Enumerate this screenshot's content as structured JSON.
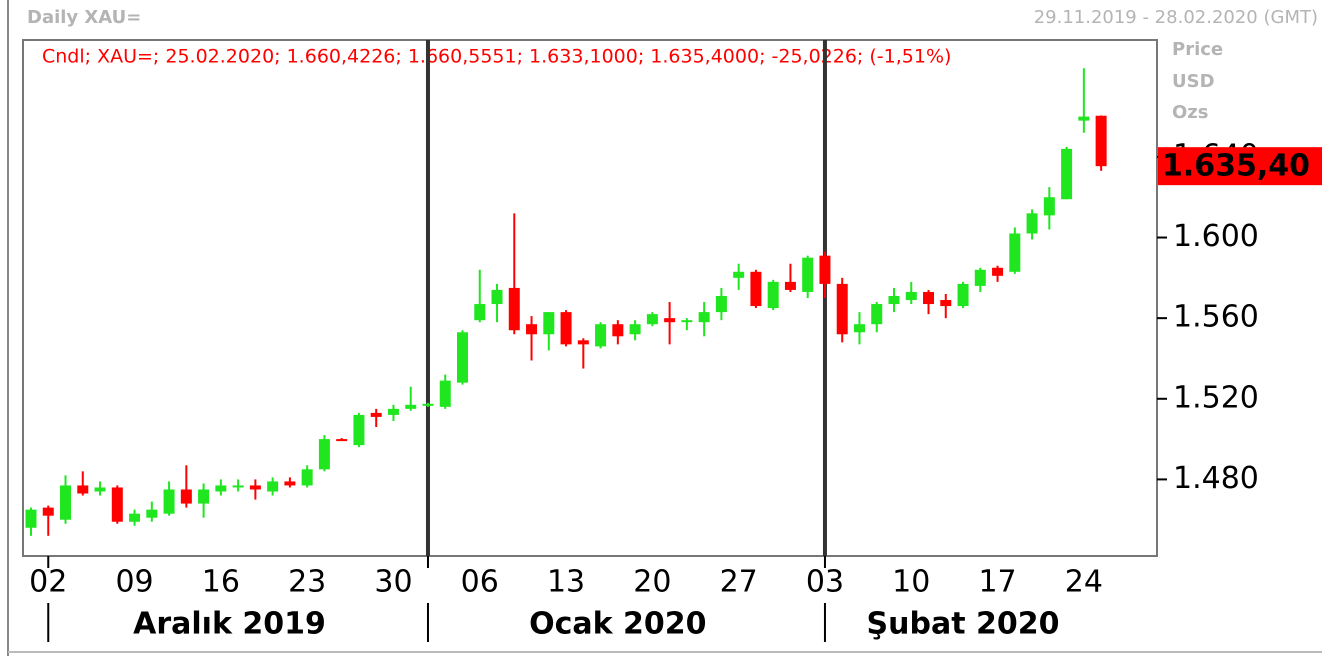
{
  "chart_data": {
    "type": "candlestick",
    "title": "Daily XAU=",
    "subtitle": "29.11.2019 - 28.02.2020 (GMT)",
    "info": "Cndl; XAU=; 25.02.2020; 1.660,4226; 1.660,5551; 1.633,1000; 1.635,4000; -25,0226; (-1,51%)",
    "axis_labels": [
      "Price",
      "USD",
      "Ozs"
    ],
    "last_label": "1.635,40",
    "up_color": "#1fe61f",
    "down_color": "#ff0000",
    "categories": [
      "29.11.2019",
      "02.12.2019",
      "03.12.2019",
      "04.12.2019",
      "05.12.2019",
      "06.12.2019",
      "09.12.2019",
      "10.12.2019",
      "11.12.2019",
      "12.12.2019",
      "13.12.2019",
      "16.12.2019",
      "17.12.2019",
      "18.12.2019",
      "19.12.2019",
      "20.12.2019",
      "23.12.2019",
      "24.12.2019",
      "25.12.2019",
      "26.12.2019",
      "27.12.2019",
      "30.12.2019",
      "31.12.2019",
      "01.01.2020",
      "02.01.2020",
      "03.01.2020",
      "06.01.2020",
      "07.01.2020",
      "08.01.2020",
      "09.01.2020",
      "10.01.2020",
      "13.01.2020",
      "14.01.2020",
      "15.01.2020",
      "16.01.2020",
      "17.01.2020",
      "20.01.2020",
      "21.01.2020",
      "22.01.2020",
      "23.01.2020",
      "24.01.2020",
      "27.01.2020",
      "28.01.2020",
      "29.01.2020",
      "30.01.2020",
      "31.01.2020",
      "03.02.2020",
      "04.02.2020",
      "05.02.2020",
      "06.02.2020",
      "07.02.2020",
      "10.02.2020",
      "11.02.2020",
      "12.02.2020",
      "13.02.2020",
      "14.02.2020",
      "17.02.2020",
      "18.02.2020",
      "19.02.2020",
      "20.02.2020",
      "21.02.2020",
      "24.02.2020",
      "25.02.2020"
    ],
    "open": [
      1456,
      1466,
      1460,
      1477,
      1474,
      1476,
      1459,
      1461,
      1463,
      1475,
      1468,
      1474,
      1476,
      1477,
      1474,
      1479,
      1477,
      1485,
      1500,
      1497,
      1513,
      1512,
      1515,
      1517,
      1516,
      1528,
      1559,
      1567,
      1575,
      1557,
      1552,
      1563,
      1549,
      1546,
      1557,
      1552,
      1557,
      1560,
      1558,
      1558,
      1563,
      1580,
      1583,
      1565,
      1578,
      1573,
      1591,
      1577,
      1553,
      1557,
      1567,
      1569,
      1573,
      1569,
      1566,
      1576,
      1585,
      1583,
      1602,
      1611,
      1619,
      1658,
      1660.4226
    ],
    "high": [
      1466,
      1467,
      1482,
      1484,
      1479,
      1477,
      1465,
      1469,
      1479,
      1487,
      1478,
      1480,
      1480,
      1480,
      1481,
      1481,
      1487,
      1502,
      1500.5,
      1513,
      1515,
      1517,
      1526,
      1518,
      1532,
      1554,
      1584,
      1577,
      1612,
      1561,
      1563,
      1564,
      1550,
      1558,
      1559,
      1559,
      1563,
      1568,
      1560,
      1568,
      1575,
      1587,
      1584,
      1579,
      1587,
      1591,
      1593,
      1580,
      1563,
      1568,
      1575,
      1578,
      1574,
      1572,
      1578,
      1585,
      1586,
      1605,
      1614,
      1625,
      1645,
      1684,
      1660.5551
    ],
    "low": [
      1452,
      1452,
      1458,
      1472,
      1472,
      1458,
      1457,
      1459,
      1462,
      1466,
      1461,
      1472,
      1474,
      1470,
      1472,
      1476,
      1476,
      1484,
      1499.5,
      1496,
      1506,
      1509,
      1514,
      1516,
      1515,
      1527,
      1558,
      1558,
      1552,
      1539,
      1544,
      1546,
      1535,
      1545,
      1547,
      1549,
      1556,
      1547,
      1554,
      1551,
      1559,
      1574,
      1565,
      1564,
      1573,
      1570,
      1570,
      1548,
      1547,
      1553,
      1563,
      1567,
      1562,
      1560,
      1565,
      1573,
      1578,
      1582,
      1599,
      1604,
      1619,
      1652,
      1633.1
    ],
    "close": [
      1465,
      1462,
      1477,
      1473,
      1476,
      1459,
      1463,
      1465,
      1475,
      1468,
      1475,
      1477,
      1477,
      1475,
      1479,
      1477,
      1485,
      1500,
      1499.5,
      1512,
      1511,
      1515,
      1517,
      1517.5,
      1529,
      1553,
      1567,
      1574,
      1554,
      1552,
      1563,
      1547,
      1547,
      1557,
      1551,
      1557,
      1562,
      1558,
      1559,
      1563,
      1571,
      1583,
      1566,
      1578,
      1574,
      1590,
      1577,
      1552,
      1557,
      1567,
      1571,
      1573,
      1567,
      1566,
      1577,
      1584,
      1581,
      1602,
      1612,
      1620,
      1644,
      1660,
      1635.4
    ],
    "ylim": [
      1442,
      1698
    ],
    "yticks": [
      {
        "value": 1480,
        "label": "1.480"
      },
      {
        "value": 1520,
        "label": "1.520"
      },
      {
        "value": 1560,
        "label": "1.560"
      },
      {
        "value": 1600,
        "label": "1.600"
      },
      {
        "value": 1640,
        "label": "1.640"
      }
    ],
    "xticks": [
      {
        "value": "02.12.2019",
        "label": "02"
      },
      {
        "value": "09.12.2019",
        "label": "09"
      },
      {
        "value": "16.12.2019",
        "label": "16"
      },
      {
        "value": "23.12.2019",
        "label": "23"
      },
      {
        "value": "30.12.2019",
        "label": "30"
      },
      {
        "value": "06.01.2020",
        "label": "06"
      },
      {
        "value": "13.01.2020",
        "label": "13"
      },
      {
        "value": "20.01.2020",
        "label": "20"
      },
      {
        "value": "27.01.2020",
        "label": "27"
      },
      {
        "value": "03.02.2020",
        "label": "03"
      },
      {
        "value": "10.02.2020",
        "label": "10"
      },
      {
        "value": "17.02.2020",
        "label": "17"
      },
      {
        "value": "24.02.2020",
        "label": "24"
      }
    ],
    "months": [
      {
        "value": "12.2019",
        "label": "Aralık 2019"
      },
      {
        "value": "01.2020",
        "label": "Ocak 2020"
      },
      {
        "value": "02.2020",
        "label": "Şubat 2020"
      }
    ]
  }
}
